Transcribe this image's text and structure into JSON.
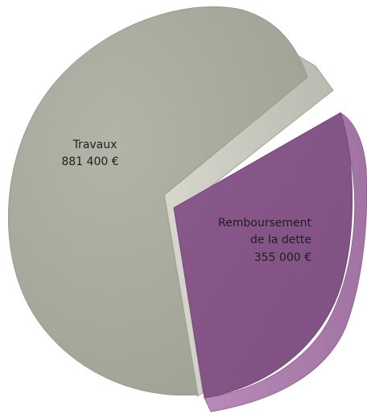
{
  "chart_data": {
    "type": "pie",
    "title": "",
    "slices": [
      {
        "label_lines": [
          "Travaux"
        ],
        "value_text": "881 400 €",
        "value": 881400,
        "color": "#A7A99C",
        "exploded": false
      },
      {
        "label_lines": [
          "Remboursement",
          "de la dette"
        ],
        "value_text": "355 000 €",
        "value": 355000,
        "color": "#845486",
        "exploded": true
      }
    ]
  }
}
